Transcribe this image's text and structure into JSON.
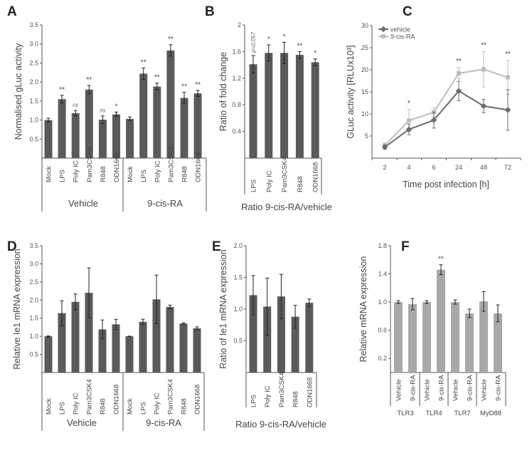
{
  "colors": {
    "bar": "#5a5a5a",
    "bar_light": "#a8a8a8",
    "vehicle_line": "#6b6b6b",
    "cis_line": "#bdbdbd",
    "axis": "#555555"
  },
  "chart_data": [
    {
      "panel": "A",
      "type": "bar",
      "ylabel": "Normalised gLuc activity",
      "ylim": [
        0,
        3.5
      ],
      "yticks": [
        "0.5",
        "1.0",
        "1.5",
        "2.0",
        "2.5",
        "3.0",
        "3.5"
      ],
      "categories": [
        "Mock",
        "LPS",
        "Poly IC",
        "Pam3CSK4",
        "R848",
        "ODN1668",
        "Mock",
        "LPS",
        "Poly IC",
        "Pam3CSK4",
        "R848",
        "ODN1668"
      ],
      "groups": [
        "Vehicle",
        "9-cis-RA"
      ],
      "values": [
        1.0,
        1.55,
        1.18,
        1.8,
        1.01,
        1.15,
        1.03,
        2.22,
        1.88,
        2.83,
        1.58,
        1.7
      ],
      "errors": [
        0.05,
        0.1,
        0.07,
        0.11,
        0.1,
        0.06,
        0.05,
        0.15,
        0.09,
        0.15,
        0.15,
        0.08
      ],
      "significance": [
        "",
        "**",
        "ns",
        "**",
        "ns",
        "*",
        "",
        "**",
        "**",
        "**",
        "**",
        "**"
      ]
    },
    {
      "panel": "B",
      "type": "bar",
      "ylabel": "Ratio of fold change",
      "ylim": [
        0,
        2
      ],
      "yticks": [
        "0.4",
        "0.8",
        "1.2",
        "1.6",
        "2"
      ],
      "categories": [
        "LPS",
        "Poly IC",
        "Pam3CSK4",
        "R848",
        "ODN1668"
      ],
      "groups": [
        "Ratio 9-cis-RA/vehicle"
      ],
      "values": [
        1.41,
        1.58,
        1.58,
        1.55,
        1.44
      ],
      "errors": [
        0.13,
        0.12,
        0.16,
        0.05,
        0.05
      ],
      "significance": [
        "p=0.057",
        "*",
        "*",
        "**",
        "*"
      ]
    },
    {
      "panel": "C",
      "type": "line",
      "ylabel": "GLuc activity [RLUx10³]",
      "xlabel": "Time post infection [h]",
      "ylim": [
        0,
        30
      ],
      "yticks": [
        "5",
        "10",
        "15",
        "20",
        "25",
        "30"
      ],
      "x": [
        "2",
        "4",
        "6",
        "24",
        "48",
        "72"
      ],
      "series": [
        {
          "name": "vehicle",
          "values": [
            2.5,
            6.5,
            8.6,
            15.2,
            11.8,
            10.9
          ],
          "errors": [
            0.5,
            1.2,
            1.8,
            2.2,
            1.5,
            4.6
          ]
        },
        {
          "name": "9-cis-RA",
          "values": [
            2.9,
            8.5,
            10.4,
            19.2,
            20.1,
            18.3
          ],
          "errors": [
            0.5,
            2.5,
            1.0,
            1.3,
            4.0,
            3.8
          ]
        }
      ],
      "significance": [
        "",
        "*",
        "",
        "**",
        "**",
        "**"
      ]
    },
    {
      "panel": "D",
      "type": "bar",
      "ylabel": "Relative Ie1 mRNA expression",
      "ylim": [
        0,
        3.5
      ],
      "yticks": [
        "0.5",
        "1.0",
        "1.5",
        "2.0",
        "2.5",
        "3.0",
        "3.5"
      ],
      "categories": [
        "Mock",
        "LPS",
        "Poly IC",
        "Pam3CSK4",
        "R848",
        "ODN1668",
        "Mock",
        "LPS",
        "Poly IC",
        "Pam3CSK4",
        "R848",
        "ODN1668"
      ],
      "groups": [
        "Vehicle",
        "9-cis-RA"
      ],
      "values": [
        1.0,
        1.64,
        1.95,
        2.2,
        1.19,
        1.33,
        1.0,
        1.4,
        2.02,
        1.81,
        1.35,
        1.22
      ],
      "errors": [
        0.01,
        0.34,
        0.22,
        0.69,
        0.26,
        0.14,
        0.005,
        0.07,
        0.67,
        0.05,
        0.02,
        0.04
      ],
      "significance": [
        "",
        "",
        "",
        "",
        "",
        "",
        "",
        "",
        "",
        "",
        "",
        ""
      ]
    },
    {
      "panel": "E",
      "type": "bar",
      "ylabel": "Ratio of Ie1 mRNA expression",
      "ylim": [
        0,
        2
      ],
      "yticks": [
        "0.5",
        "1.0",
        "1.5",
        "2.0"
      ],
      "categories": [
        "LPS",
        "Poly IC",
        "Pam3CSK4",
        "R848",
        "ODN1668"
      ],
      "groups": [
        "Ratio 9-cis-RA/vehicle"
      ],
      "values": [
        1.22,
        1.04,
        1.2,
        0.88,
        1.1
      ],
      "errors": [
        0.31,
        0.45,
        0.35,
        0.18,
        0.06
      ],
      "significance": [
        "",
        "",
        "",
        "",
        ""
      ]
    },
    {
      "panel": "F",
      "type": "bar",
      "ylabel": "Relative mRNA expression",
      "ylim": [
        0,
        1.8
      ],
      "yticks": [
        "0.2",
        "0.6",
        "1.0",
        "1.4",
        "1.8"
      ],
      "categories": [
        "Vehicle",
        "9-cis-RA",
        "Vehicle",
        "9-cis-RA",
        "Vehicle",
        "9-cis-RA",
        "Vehicle",
        "9-cis-RA"
      ],
      "groups": [
        "TLR3",
        "TLR4",
        "TLR7",
        "MyD88"
      ],
      "values": [
        1.0,
        0.97,
        1.0,
        1.46,
        1.0,
        0.84,
        1.01,
        0.84
      ],
      "errors": [
        0.02,
        0.08,
        0.02,
        0.07,
        0.03,
        0.06,
        0.14,
        0.12
      ],
      "significance": [
        "",
        "",
        "",
        "**",
        "",
        "",
        "",
        ""
      ]
    }
  ]
}
